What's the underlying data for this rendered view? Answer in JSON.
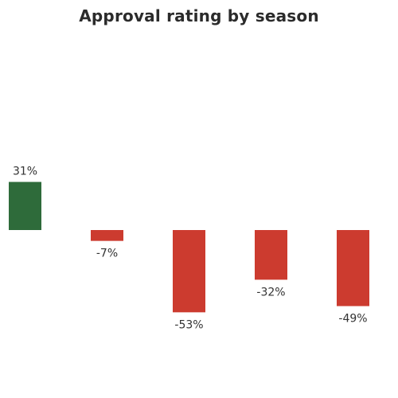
{
  "chart_data": {
    "type": "bar",
    "title": "Approval rating by season",
    "xlabel": "",
    "ylabel": "",
    "categories": [
      "",
      "",
      "",
      "",
      ""
    ],
    "values": [
      31,
      -7,
      -53,
      -32,
      -49
    ],
    "value_labels": [
      "31%",
      "-7%",
      "-53%",
      "-32%",
      "-49%"
    ],
    "unit": "%",
    "ylim": [
      -60,
      40
    ],
    "grid": false,
    "legend": "none",
    "colors": {
      "positive": "#2e6b3a",
      "negative": "#cc3b2f"
    }
  }
}
